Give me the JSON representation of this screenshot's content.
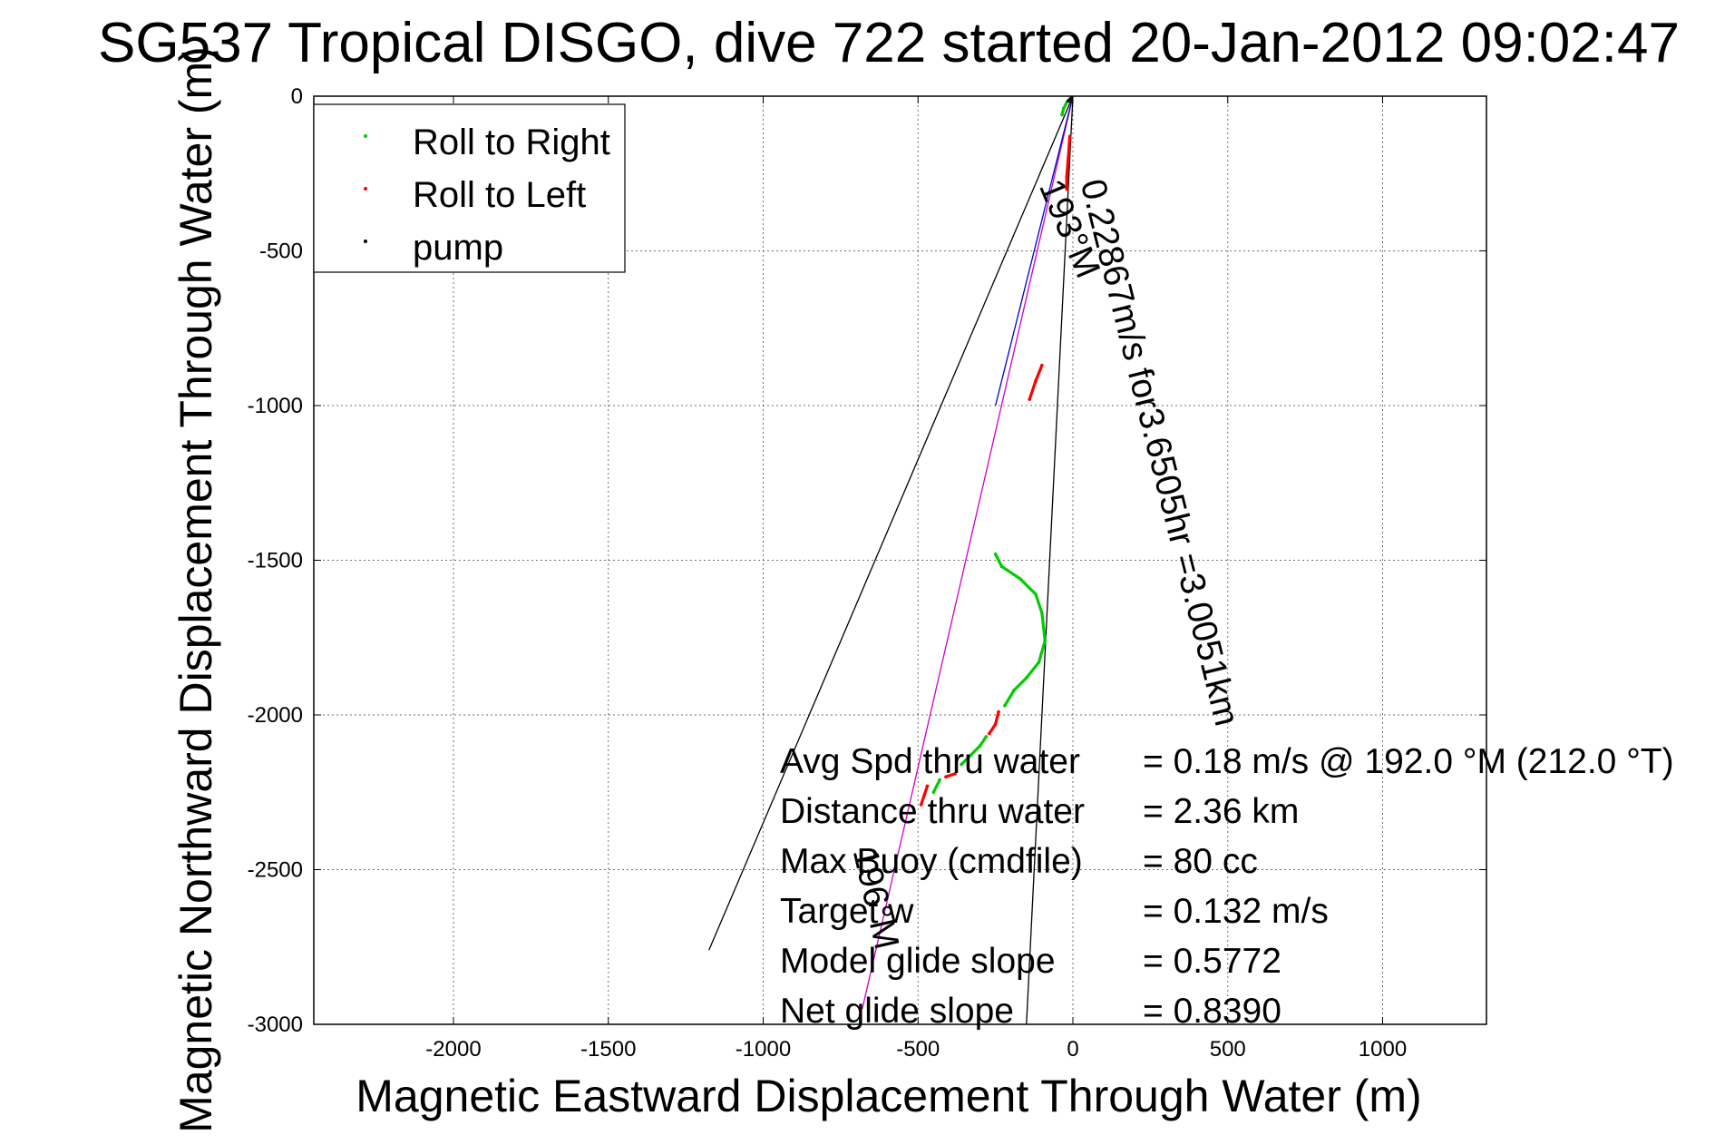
{
  "chart_data": {
    "type": "line",
    "title": "SG537 Tropical DISGO, dive 722 started 20-Jan-2012 09:02:47",
    "xlabel": "Magnetic Eastward Displacement Through Water (m)",
    "ylabel": "Magnetic Northward Displacement Through Water (m)",
    "xlim": [
      -2500,
      1320
    ],
    "ylim": [
      -3000,
      0
    ],
    "x_ticks": [
      -2000,
      -1500,
      -1000,
      -500,
      0,
      500,
      1000
    ],
    "x_tick_labels": [
      "-2000",
      "-1500",
      "-1000",
      "-500",
      "0",
      "500",
      "1000"
    ],
    "y_ticks": [
      0,
      -500,
      -1000,
      -1500,
      -2000,
      -2500,
      -3000
    ],
    "y_tick_labels": [
      "0",
      "-500",
      "-1000",
      "-1500",
      "-2000",
      "-2500",
      "-3000"
    ],
    "grid": true,
    "legend": {
      "placement": "top-left",
      "entries": [
        {
          "label": "Roll to Right",
          "color": "#00cc00"
        },
        {
          "label": "Roll to Left",
          "color": "#ff0000"
        },
        {
          "label": "pump",
          "color": "#000000"
        }
      ]
    },
    "series": [
      {
        "name": "Roll to Right",
        "color": "#00cc00",
        "segments": [
          [
            [
              -10,
              -10
            ],
            [
              -20,
              -20
            ],
            [
              -30,
              -40
            ],
            [
              -35,
              -60
            ]
          ],
          [
            [
              -250,
              -1480
            ],
            [
              -230,
              -1520
            ],
            [
              -170,
              -1560
            ],
            [
              -120,
              -1610
            ],
            [
              -100,
              -1670
            ],
            [
              -90,
              -1760
            ],
            [
              -110,
              -1830
            ],
            [
              -150,
              -1880
            ],
            [
              -190,
              -1920
            ],
            [
              -220,
              -1970
            ]
          ],
          [
            [
              -280,
              -2070
            ],
            [
              -300,
              -2100
            ],
            [
              -330,
              -2130
            ],
            [
              -360,
              -2160
            ]
          ],
          [
            [
              -430,
              -2210
            ],
            [
              -450,
              -2250
            ]
          ]
        ]
      },
      {
        "name": "Roll to Left",
        "color": "#ff0000",
        "segments": [
          [
            [
              -10,
              -130
            ],
            [
              -15,
              -200
            ],
            [
              -20,
              -260
            ],
            [
              -20,
              -300
            ]
          ],
          [
            [
              -100,
              -870
            ],
            [
              -120,
              -920
            ],
            [
              -140,
              -980
            ]
          ],
          [
            [
              -240,
              -1990
            ],
            [
              -250,
              -2030
            ],
            [
              -270,
              -2060
            ]
          ],
          [
            [
              -380,
              -2190
            ],
            [
              -410,
              -2200
            ]
          ],
          [
            [
              -470,
              -2230
            ],
            [
              -480,
              -2260
            ],
            [
              -490,
              -2290
            ]
          ]
        ]
      },
      {
        "name": "pump",
        "color": "#000000",
        "segments": [
          [
            [
              -5,
              -5
            ],
            [
              -15,
              -15
            ]
          ]
        ]
      }
    ],
    "lines": [
      {
        "name": "magenta-track",
        "color": "#cc00cc",
        "points": [
          [
            0,
            0
          ],
          [
            -680,
            -2950
          ]
        ]
      },
      {
        "name": "blue-course",
        "color": "#0000cc",
        "points": [
          [
            0,
            0
          ],
          [
            -250,
            -1000
          ]
        ]
      },
      {
        "name": "bearing-fan-left",
        "color": "#000000",
        "points": [
          [
            0,
            0
          ],
          [
            -1175,
            -2760
          ]
        ]
      },
      {
        "name": "bearing-fan-right",
        "color": "#000000",
        "points": [
          [
            0,
            0
          ],
          [
            -150,
            -3000
          ]
        ]
      }
    ],
    "annotations": {
      "rotated": [
        {
          "text": "0.22867m/s for3.6505hr =3.0051km",
          "anchor": [
            25,
            -280
          ],
          "angle": 76
        },
        {
          "text": "193°M",
          "anchor": [
            -110,
            -290
          ],
          "angle": 67
        },
        {
          "text": "196°M",
          "anchor": [
            -710,
            -2440
          ],
          "angle": 77
        }
      ],
      "stats": [
        {
          "label": "Avg Spd thru water",
          "value": "=  0.18 m/s @ 192.0 °M (212.0 °T)"
        },
        {
          "label": "Distance thru water",
          "value": "=  2.36 km"
        },
        {
          "label": "Max Buoy (cmdfile)",
          "value": "= 80 cc"
        },
        {
          "label": "Target w",
          "value": "= 0.132 m/s"
        },
        {
          "label": "Model glide slope",
          "value": "= 0.5772"
        },
        {
          "label": "Net glide slope",
          "value": "= 0.8390"
        }
      ]
    }
  }
}
